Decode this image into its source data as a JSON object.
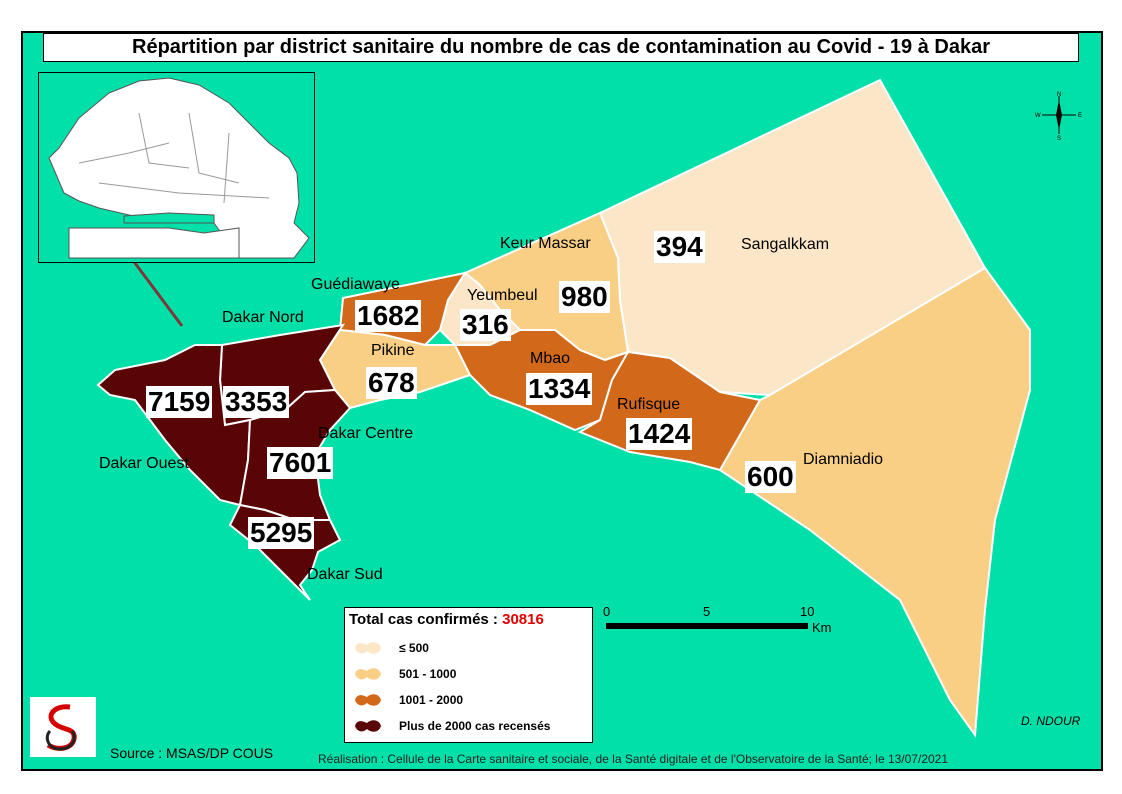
{
  "title": "Répartition par district sanitaire du nombre de cas de contamination au Covid - 19 à Dakar",
  "districts": [
    {
      "name": "Dakar Nord",
      "cases": 3353,
      "class": "Plus de 2000 cas recensés"
    },
    {
      "name": "Dakar Ouest",
      "cases": 7159,
      "class": "Plus de 2000 cas recensés"
    },
    {
      "name": "Dakar Centre",
      "cases": 7601,
      "class": "Plus de 2000 cas recensés"
    },
    {
      "name": "Dakar Sud",
      "cases": 5295,
      "class": "Plus de 2000 cas recensés"
    },
    {
      "name": "Guédiawaye",
      "cases": 1682,
      "class": "1001 - 2000"
    },
    {
      "name": "Pikine",
      "cases": 678,
      "class": "501 - 1000"
    },
    {
      "name": "Yeumbeul",
      "cases": 316,
      "class": "≤ 500"
    },
    {
      "name": "Keur Massar",
      "cases": 980,
      "class": "501 - 1000"
    },
    {
      "name": "Sangalkkam",
      "cases": 394,
      "class": "≤ 500"
    },
    {
      "name": "Mbao",
      "cases": 1334,
      "class": "1001 - 2000"
    },
    {
      "name": "Rufisque",
      "cases": 1424,
      "class": "1001 - 2000"
    },
    {
      "name": "Diamniadio",
      "cases": 600,
      "class": "501 - 1000"
    }
  ],
  "legend": {
    "title": "Total cas confirmés :",
    "total": "30816",
    "classes": [
      {
        "label": "≤  500",
        "color": "#fbe6c8"
      },
      {
        "label": "501 - 1000",
        "color": "#f9cf85"
      },
      {
        "label": "1001 - 2000",
        "color": "#d2691a"
      },
      {
        "label": "Plus de 2000 cas recensés",
        "color": "#5a0505"
      }
    ]
  },
  "colors": {
    "sea": "#00e0a8",
    "land_outline": "#ffffff"
  },
  "scale": {
    "ticks": [
      "0",
      "5",
      "10"
    ],
    "unit": "Km"
  },
  "north_arrow": {
    "icon": "compass-rose-icon",
    "letters": [
      "N",
      "W",
      "E",
      "S"
    ]
  },
  "source": "Source : MSAS/DP COUS",
  "credit": "Réalisation : Cellule de la Carte sanitaire et sociale, de la Santé digitale  et de l'Observatoire de la Santé; le 13/07/2021",
  "author": "D. NDOUR"
}
